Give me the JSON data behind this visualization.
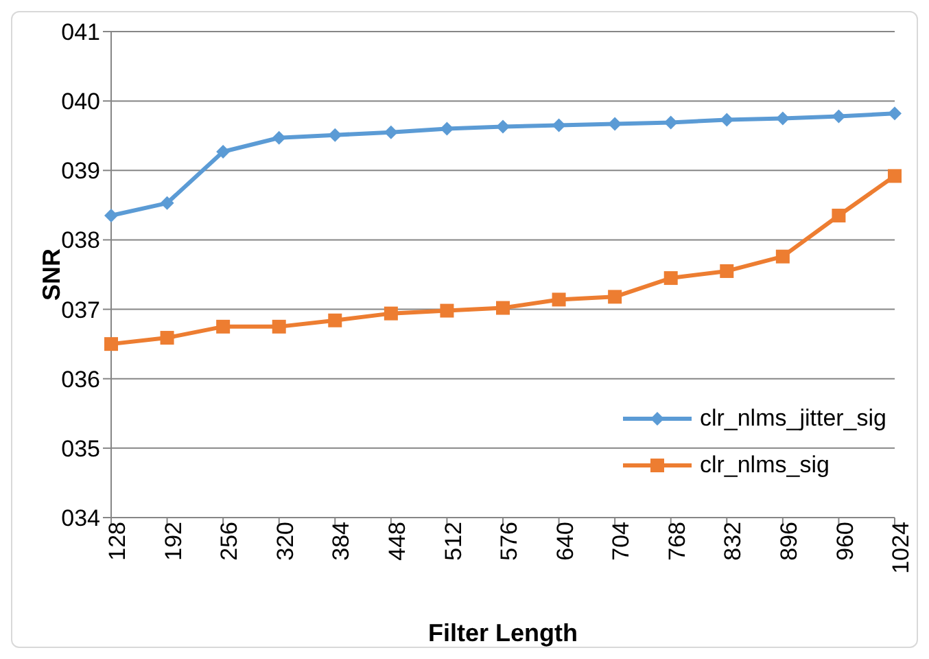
{
  "chart_data": {
    "type": "line",
    "xlabel": "Filter Length",
    "ylabel": "SNR",
    "categories": [
      "128",
      "192",
      "256",
      "320",
      "384",
      "448",
      "512",
      "576",
      "640",
      "704",
      "768",
      "832",
      "896",
      "960",
      "1024"
    ],
    "series": [
      {
        "name": "clr_nlms_jitter_sig",
        "color": "#5b9bd5",
        "marker": "diamond",
        "values": [
          38.35,
          38.53,
          39.27,
          39.47,
          39.51,
          39.55,
          39.6,
          39.63,
          39.65,
          39.67,
          39.69,
          39.73,
          39.75,
          39.78,
          39.82
        ]
      },
      {
        "name": "clr_nlms_sig",
        "color": "#ed7d31",
        "marker": "square",
        "values": [
          36.5,
          36.59,
          36.75,
          36.75,
          36.84,
          36.94,
          36.98,
          37.02,
          37.14,
          37.18,
          37.45,
          37.55,
          37.76,
          38.35,
          38.92
        ]
      }
    ],
    "ylim": [
      34,
      41
    ],
    "yticks": [
      {
        "value": 34,
        "label": "034"
      },
      {
        "value": 35,
        "label": "035"
      },
      {
        "value": 36,
        "label": "036"
      },
      {
        "value": 37,
        "label": "037"
      },
      {
        "value": 38,
        "label": "038"
      },
      {
        "value": 39,
        "label": "039"
      },
      {
        "value": 40,
        "label": "040"
      },
      {
        "value": 41,
        "label": "041"
      }
    ],
    "grid": "y",
    "legend": "bottom right",
    "line_style": "solid"
  }
}
